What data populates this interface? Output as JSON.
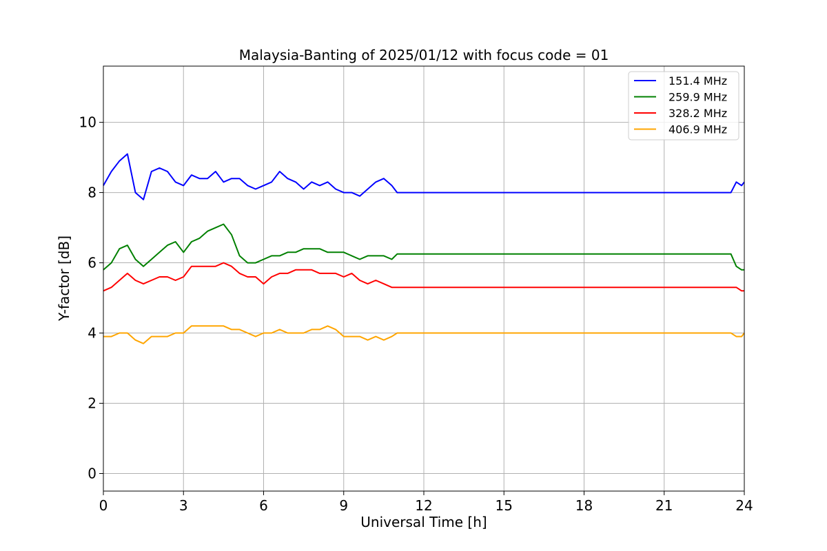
{
  "chart_data": {
    "type": "line",
    "title": "Malaysia-Banting of 2025/01/12 with focus code = 01",
    "xlabel": "Universal Time [h]",
    "ylabel": "Y-factor [dB]",
    "xlim": [
      0,
      24
    ],
    "ylim": [
      -0.5,
      11.6
    ],
    "xticks": [
      0,
      3,
      6,
      9,
      12,
      15,
      18,
      21,
      24
    ],
    "yticks": [
      0,
      2,
      4,
      6,
      8,
      10
    ],
    "grid": true,
    "legend_position": "top-right",
    "series": [
      {
        "name": "151.4 MHz",
        "color": "#0000ff",
        "x": [
          0,
          0.3,
          0.6,
          0.9,
          1.2,
          1.5,
          1.8,
          2.1,
          2.4,
          2.7,
          3.0,
          3.3,
          3.6,
          3.9,
          4.2,
          4.5,
          4.8,
          5.1,
          5.4,
          5.7,
          6.0,
          6.3,
          6.6,
          6.9,
          7.2,
          7.5,
          7.8,
          8.1,
          8.4,
          8.7,
          9.0,
          9.3,
          9.6,
          9.9,
          10.2,
          10.5,
          10.8,
          11.0,
          23.5,
          23.7,
          23.9,
          24.0
        ],
        "y": [
          8.2,
          8.6,
          8.9,
          9.1,
          8.0,
          7.8,
          8.6,
          8.7,
          8.6,
          8.3,
          8.2,
          8.5,
          8.4,
          8.4,
          8.6,
          8.3,
          8.4,
          8.4,
          8.2,
          8.1,
          8.2,
          8.3,
          8.6,
          8.4,
          8.3,
          8.1,
          8.3,
          8.2,
          8.3,
          8.1,
          8.0,
          8.0,
          7.9,
          8.1,
          8.3,
          8.4,
          8.2,
          8.0,
          8.0,
          8.3,
          8.2,
          8.3
        ]
      },
      {
        "name": "259.9 MHz",
        "color": "#008000",
        "x": [
          0,
          0.3,
          0.6,
          0.9,
          1.2,
          1.5,
          1.8,
          2.1,
          2.4,
          2.7,
          3.0,
          3.3,
          3.6,
          3.9,
          4.2,
          4.5,
          4.8,
          5.1,
          5.4,
          5.7,
          6.0,
          6.3,
          6.6,
          6.9,
          7.2,
          7.5,
          7.8,
          8.1,
          8.4,
          8.7,
          9.0,
          9.3,
          9.6,
          9.9,
          10.2,
          10.5,
          10.8,
          11.0,
          23.5,
          23.7,
          23.9,
          24.0
        ],
        "y": [
          5.8,
          6.0,
          6.4,
          6.5,
          6.1,
          5.9,
          6.1,
          6.3,
          6.5,
          6.6,
          6.3,
          6.6,
          6.7,
          6.9,
          7.0,
          7.1,
          6.8,
          6.2,
          6.0,
          6.0,
          6.1,
          6.2,
          6.2,
          6.3,
          6.3,
          6.4,
          6.4,
          6.4,
          6.3,
          6.3,
          6.3,
          6.2,
          6.1,
          6.2,
          6.2,
          6.2,
          6.1,
          6.25,
          6.25,
          5.9,
          5.8,
          5.8
        ]
      },
      {
        "name": "328.2 MHz",
        "color": "#ff0000",
        "x": [
          0,
          0.3,
          0.6,
          0.9,
          1.2,
          1.5,
          1.8,
          2.1,
          2.4,
          2.7,
          3.0,
          3.3,
          3.6,
          3.9,
          4.2,
          4.5,
          4.8,
          5.1,
          5.4,
          5.7,
          6.0,
          6.3,
          6.6,
          6.9,
          7.2,
          7.5,
          7.8,
          8.1,
          8.4,
          8.7,
          9.0,
          9.3,
          9.6,
          9.9,
          10.2,
          10.5,
          10.8,
          11.0,
          23.5,
          23.7,
          23.9,
          24.0
        ],
        "y": [
          5.2,
          5.3,
          5.5,
          5.7,
          5.5,
          5.4,
          5.5,
          5.6,
          5.6,
          5.5,
          5.6,
          5.9,
          5.9,
          5.9,
          5.9,
          6.0,
          5.9,
          5.7,
          5.6,
          5.6,
          5.4,
          5.6,
          5.7,
          5.7,
          5.8,
          5.8,
          5.8,
          5.7,
          5.7,
          5.7,
          5.6,
          5.7,
          5.5,
          5.4,
          5.5,
          5.4,
          5.3,
          5.3,
          5.3,
          5.3,
          5.2,
          5.2
        ]
      },
      {
        "name": "406.9 MHz",
        "color": "#ffa500",
        "x": [
          0,
          0.3,
          0.6,
          0.9,
          1.2,
          1.5,
          1.8,
          2.1,
          2.4,
          2.7,
          3.0,
          3.3,
          3.6,
          3.9,
          4.2,
          4.5,
          4.8,
          5.1,
          5.4,
          5.7,
          6.0,
          6.3,
          6.6,
          6.9,
          7.2,
          7.5,
          7.8,
          8.1,
          8.4,
          8.7,
          9.0,
          9.3,
          9.6,
          9.9,
          10.2,
          10.5,
          10.8,
          11.0,
          23.5,
          23.7,
          23.9,
          24.0
        ],
        "y": [
          3.9,
          3.9,
          4.0,
          4.0,
          3.8,
          3.7,
          3.9,
          3.9,
          3.9,
          4.0,
          4.0,
          4.2,
          4.2,
          4.2,
          4.2,
          4.2,
          4.1,
          4.1,
          4.0,
          3.9,
          4.0,
          4.0,
          4.1,
          4.0,
          4.0,
          4.0,
          4.1,
          4.1,
          4.2,
          4.1,
          3.9,
          3.9,
          3.9,
          3.8,
          3.9,
          3.8,
          3.9,
          4.0,
          4.0,
          3.9,
          3.9,
          4.0
        ]
      }
    ]
  }
}
